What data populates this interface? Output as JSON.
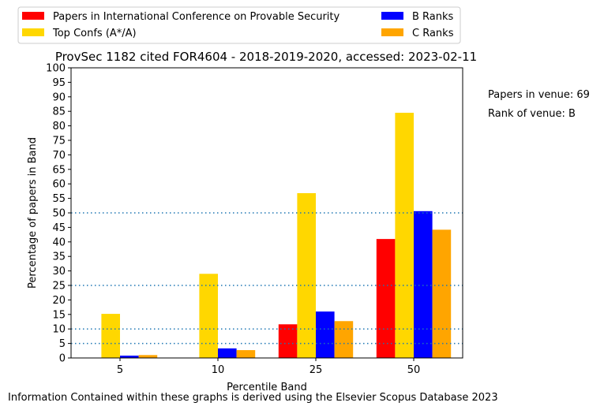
{
  "colors": {
    "papers": "#ff0000",
    "top": "#ffd700",
    "b": "#0000ff",
    "c": "#ffa500",
    "reference_line": "#1f77b4"
  },
  "side_notes": {
    "papers_in_venue": "Papers in venue: 69",
    "rank_of_venue": "Rank of venue: B"
  },
  "footer": "Information Contained within these graphs is derived using the Elsevier Scopus Database 2023",
  "chart_data": {
    "type": "bar",
    "title": "ProvSec 1182 cited FOR4604 - 2018-2019-2020, accessed: 2023-02-11",
    "xlabel": "Percentile Band",
    "ylabel": "Percentage of papers in Band",
    "categories": [
      "5",
      "10",
      "25",
      "50"
    ],
    "ylim": [
      0,
      100
    ],
    "yticks": [
      0,
      5,
      10,
      15,
      20,
      25,
      30,
      35,
      40,
      45,
      50,
      55,
      60,
      65,
      70,
      75,
      80,
      85,
      90,
      95,
      100
    ],
    "reference_lines": [
      5,
      10,
      25,
      50
    ],
    "legend_position": "top, outside plot, two columns",
    "series": [
      {
        "name": "Papers in International Conference on Provable Security",
        "color_key": "papers",
        "values": [
          0,
          0,
          11.6,
          41.0
        ]
      },
      {
        "name": "Top Confs (A*/A)",
        "color_key": "top",
        "values": [
          15.2,
          29.0,
          56.8,
          84.5
        ]
      },
      {
        "name": "B Ranks",
        "color_key": "b",
        "values": [
          0.8,
          3.3,
          16.0,
          50.6
        ]
      },
      {
        "name": "C Ranks",
        "color_key": "c",
        "values": [
          1.0,
          2.7,
          12.7,
          44.2
        ]
      }
    ]
  }
}
